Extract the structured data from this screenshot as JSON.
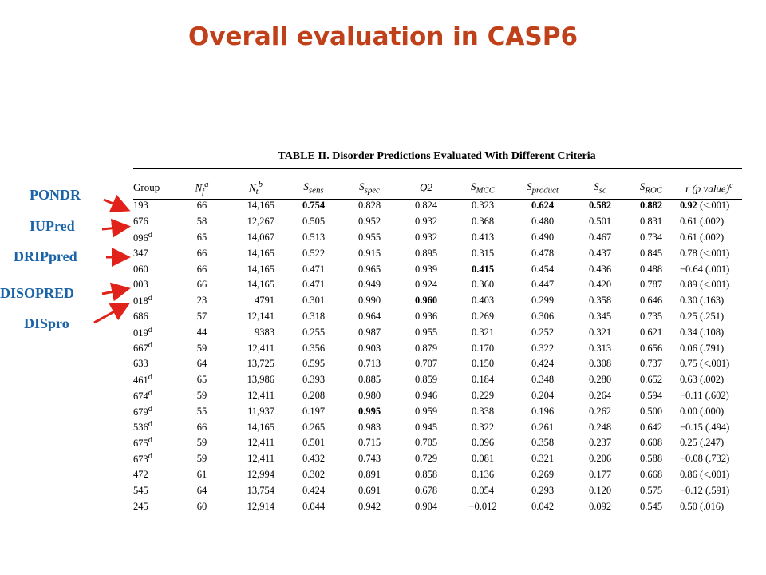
{
  "title": "Overall evaluation in CASP6",
  "colors": {
    "title": "#c0401a",
    "label": "#1a63a8",
    "arrow": "#e0221a"
  },
  "labels": [
    {
      "text": "PONDR"
    },
    {
      "text": "IUPred"
    },
    {
      "text": "DRIPpred"
    },
    {
      "text": "DISOPRED"
    },
    {
      "text": "DISpro"
    }
  ],
  "table": {
    "caption": "TABLE II. Disorder Predictions Evaluated With Different Criteria",
    "headers": [
      "Group",
      "Nfa",
      "Ntb",
      "Ssens",
      "Sspec",
      "Q2",
      "SMCC",
      "Sproduct",
      "Ssc",
      "SROC",
      "r (p value)c"
    ],
    "rows": [
      [
        "193",
        "66",
        "14,165",
        "0.754",
        "0.828",
        "0.824",
        "0.323",
        "0.624",
        "0.582",
        "0.882",
        "0.92 (<.001)"
      ],
      [
        "676",
        "58",
        "12,267",
        "0.505",
        "0.952",
        "0.932",
        "0.368",
        "0.480",
        "0.501",
        "0.831",
        "0.61 (.002)"
      ],
      [
        "096d",
        "65",
        "14,067",
        "0.513",
        "0.955",
        "0.932",
        "0.413",
        "0.490",
        "0.467",
        "0.734",
        "0.61 (.002)"
      ],
      [
        "347",
        "66",
        "14,165",
        "0.522",
        "0.915",
        "0.895",
        "0.315",
        "0.478",
        "0.437",
        "0.845",
        "0.78 (<.001)"
      ],
      [
        "060",
        "66",
        "14,165",
        "0.471",
        "0.965",
        "0.939",
        "0.415",
        "0.454",
        "0.436",
        "0.488",
        "−0.64 (.001)"
      ],
      [
        "003",
        "66",
        "14,165",
        "0.471",
        "0.949",
        "0.924",
        "0.360",
        "0.447",
        "0.420",
        "0.787",
        "0.89 (<.001)"
      ],
      [
        "018d",
        "23",
        "4791",
        "0.301",
        "0.990",
        "0.960",
        "0.403",
        "0.299",
        "0.358",
        "0.646",
        "0.30 (.163)"
      ],
      [
        "686",
        "57",
        "12,141",
        "0.318",
        "0.964",
        "0.936",
        "0.269",
        "0.306",
        "0.345",
        "0.735",
        "0.25 (.251)"
      ],
      [
        "019d",
        "44",
        "9383",
        "0.255",
        "0.987",
        "0.955",
        "0.321",
        "0.252",
        "0.321",
        "0.621",
        "0.34 (.108)"
      ],
      [
        "667d",
        "59",
        "12,411",
        "0.356",
        "0.903",
        "0.879",
        "0.170",
        "0.322",
        "0.313",
        "0.656",
        "0.06 (.791)"
      ],
      [
        "633",
        "64",
        "13,725",
        "0.595",
        "0.713",
        "0.707",
        "0.150",
        "0.424",
        "0.308",
        "0.737",
        "0.75 (<.001)"
      ],
      [
        "461d",
        "65",
        "13,986",
        "0.393",
        "0.885",
        "0.859",
        "0.184",
        "0.348",
        "0.280",
        "0.652",
        "0.63 (.002)"
      ],
      [
        "674d",
        "59",
        "12,411",
        "0.208",
        "0.980",
        "0.946",
        "0.229",
        "0.204",
        "0.264",
        "0.594",
        "−0.11 (.602)"
      ],
      [
        "679d",
        "55",
        "11,937",
        "0.197",
        "0.995",
        "0.959",
        "0.338",
        "0.196",
        "0.262",
        "0.500",
        "0.00 (.000)"
      ],
      [
        "536d",
        "66",
        "14,165",
        "0.265",
        "0.983",
        "0.945",
        "0.322",
        "0.261",
        "0.248",
        "0.642",
        "−0.15 (.494)"
      ],
      [
        "675d",
        "59",
        "12,411",
        "0.501",
        "0.715",
        "0.705",
        "0.096",
        "0.358",
        "0.237",
        "0.608",
        "0.25 (.247)"
      ],
      [
        "673d",
        "59",
        "12,411",
        "0.432",
        "0.743",
        "0.729",
        "0.081",
        "0.321",
        "0.206",
        "0.588",
        "−0.08 (.732)"
      ],
      [
        "472",
        "61",
        "12,994",
        "0.302",
        "0.891",
        "0.858",
        "0.136",
        "0.269",
        "0.177",
        "0.668",
        "0.86 (<.001)"
      ],
      [
        "545",
        "64",
        "13,754",
        "0.424",
        "0.691",
        "0.678",
        "0.054",
        "0.293",
        "0.120",
        "0.575",
        "−0.12 (.591)"
      ],
      [
        "245",
        "60",
        "12,914",
        "0.044",
        "0.942",
        "0.904",
        "−0.012",
        "0.042",
        "0.092",
        "0.545",
        "0.50 (.016)"
      ]
    ]
  }
}
